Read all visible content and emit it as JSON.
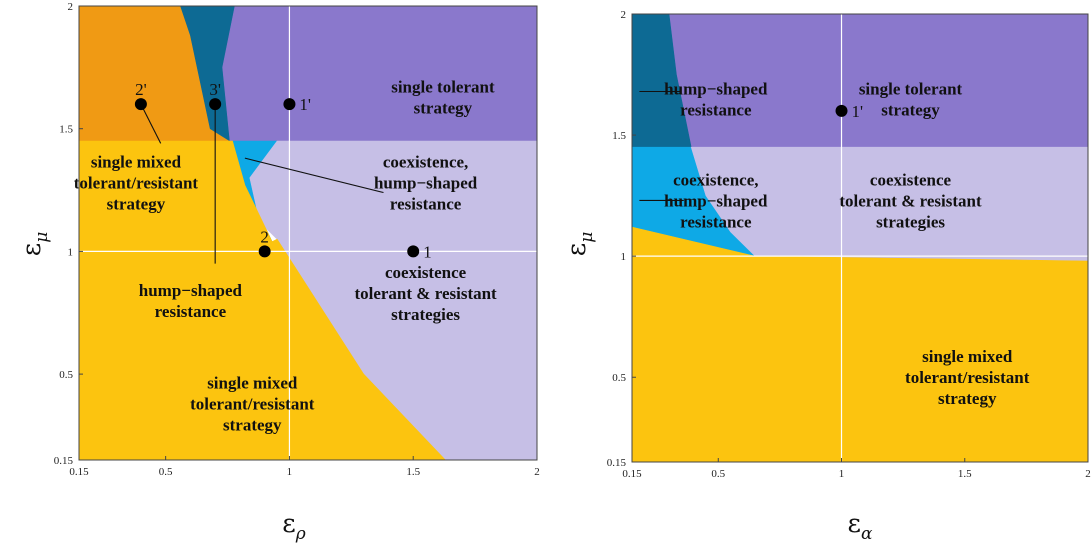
{
  "colors": {
    "single_tolerant": "#8a78cc",
    "coexistence_tol_res": "#c6bfe6",
    "hump_dark": "#0d6a94",
    "hump_light": "#0ea9e6",
    "mixed_yellow": "#fcc40f",
    "mixed_orange": "#f09a14",
    "guide": "#ffffff"
  },
  "chart_data": [
    {
      "type": "heatmap",
      "panel": "left",
      "xlabel": "ε",
      "xlabel_sub": "ρ",
      "ylabel": "ε",
      "ylabel_sub": "μ",
      "xlim": [
        0.15,
        2
      ],
      "ylim": [
        0.15,
        2
      ],
      "x_ticks": [
        "0.15",
        "0.5",
        "1",
        "1.5",
        "2"
      ],
      "y_ticks": [
        "0.15",
        "0.5",
        "1",
        "1.5",
        "2"
      ],
      "guides": {
        "x": 1,
        "y": 1
      },
      "regions": [
        {
          "key": "orange",
          "color_key": "mixed_orange",
          "polygon": [
            [
              0.15,
              2
            ],
            [
              0.56,
              2
            ],
            [
              0.6,
              1.88
            ],
            [
              0.65,
              1.74
            ],
            [
              0.71,
              1.6
            ],
            [
              0.77,
              1.45
            ],
            [
              0.15,
              1.45
            ]
          ]
        },
        {
          "key": "dark",
          "color_key": "hump_dark",
          "polygon": [
            [
              0.56,
              2
            ],
            [
              0.78,
              2
            ],
            [
              0.73,
              1.75
            ],
            [
              0.76,
              1.45
            ],
            [
              0.68,
              1.5
            ],
            [
              0.6,
              1.88
            ]
          ]
        },
        {
          "key": "purple",
          "color_key": "single_tolerant",
          "polygon": [
            [
              0.78,
              2
            ],
            [
              2,
              2
            ],
            [
              2,
              1.45
            ],
            [
              0.76,
              1.45
            ],
            [
              0.73,
              1.75
            ]
          ]
        },
        {
          "key": "cyan",
          "color_key": "hump_light",
          "polygon": [
            [
              0.77,
              1.45
            ],
            [
              0.95,
              1.45
            ],
            [
              0.84,
              1.3
            ],
            [
              0.88,
              1.12
            ],
            [
              0.93,
              1.04
            ],
            [
              0.82,
              1.27
            ]
          ]
        },
        {
          "key": "lavender",
          "color_key": "coexistence_tol_res",
          "polygon": [
            [
              0.95,
              1.45
            ],
            [
              2,
              1.45
            ],
            [
              2,
              0.15
            ],
            [
              1.63,
              0.15
            ],
            [
              1.3,
              0.5
            ],
            [
              0.95,
              1.05
            ],
            [
              0.88,
              1.12
            ],
            [
              0.84,
              1.3
            ]
          ]
        },
        {
          "key": "yellow",
          "color_key": "mixed_yellow",
          "polygon": [
            [
              0.15,
              1.45
            ],
            [
              0.77,
              1.45
            ],
            [
              0.82,
              1.27
            ],
            [
              0.93,
              1.04
            ],
            [
              0.95,
              1.05
            ],
            [
              1.3,
              0.5
            ],
            [
              1.63,
              0.15
            ],
            [
              0.15,
              0.15
            ]
          ]
        }
      ],
      "region_labels": [
        {
          "lines": [
            "single tolerant",
            "strategy"
          ],
          "x": 1.62,
          "y": 1.63
        },
        {
          "lines": [
            "single mixed",
            "tolerant/resistant",
            "strategy"
          ],
          "x": 0.38,
          "y": 1.28
        },
        {
          "lines": [
            "coexistence,",
            "hump−shaped",
            "resistance"
          ],
          "x": 1.55,
          "y": 1.28
        },
        {
          "lines": [
            "coexistence",
            "tolerant & resistant",
            "strategies"
          ],
          "x": 1.55,
          "y": 0.83
        },
        {
          "lines": [
            "hump−shaped",
            "resistance"
          ],
          "x": 0.6,
          "y": 0.8
        },
        {
          "lines": [
            "single mixed",
            "tolerant/resistant",
            "strategy"
          ],
          "x": 0.85,
          "y": 0.38
        }
      ],
      "points": [
        {
          "label": "1'",
          "x": 1.0,
          "y": 1.6,
          "label_side": "right"
        },
        {
          "label": "2'",
          "x": 0.4,
          "y": 1.6,
          "label_side": "above"
        },
        {
          "label": "3'",
          "x": 0.7,
          "y": 1.6,
          "label_side": "above"
        },
        {
          "label": "2",
          "x": 0.9,
          "y": 1.0,
          "label_side": "above"
        },
        {
          "label": "1",
          "x": 1.5,
          "y": 1.0,
          "label_side": "right"
        }
      ],
      "leader_lines": [
        {
          "from": [
            0.4,
            1.6
          ],
          "to": [
            0.48,
            1.44
          ]
        },
        {
          "from": [
            0.7,
            1.6
          ],
          "to": [
            0.7,
            0.95
          ]
        },
        {
          "from": [
            0.82,
            1.38
          ],
          "to": [
            1.38,
            1.24
          ]
        }
      ]
    },
    {
      "type": "heatmap",
      "panel": "right",
      "xlabel": "ε",
      "xlabel_sub": "α",
      "ylabel": "ε",
      "ylabel_sub": "μ",
      "xlim": [
        0.15,
        2
      ],
      "ylim": [
        0.15,
        2
      ],
      "x_ticks": [
        "0.15",
        "0.5",
        "1",
        "1.5",
        "2"
      ],
      "y_ticks": [
        "0.15",
        "0.5",
        "1",
        "1.5",
        "2"
      ],
      "guides": {
        "x": 1,
        "y": 1
      },
      "regions": [
        {
          "key": "purple",
          "color_key": "single_tolerant",
          "polygon": [
            [
              0.15,
              2
            ],
            [
              2,
              2
            ],
            [
              2,
              1.45
            ],
            [
              0.15,
              1.45
            ]
          ]
        },
        {
          "key": "dark",
          "color_key": "hump_dark",
          "polygon": [
            [
              0.15,
              2
            ],
            [
              0.3,
              2
            ],
            [
              0.33,
              1.75
            ],
            [
              0.39,
              1.45
            ],
            [
              0.15,
              1.45
            ]
          ]
        },
        {
          "key": "cyan",
          "color_key": "hump_light",
          "polygon": [
            [
              0.15,
              1.45
            ],
            [
              0.39,
              1.45
            ],
            [
              0.45,
              1.25
            ],
            [
              0.55,
              1.1
            ],
            [
              0.65,
              1.0
            ],
            [
              0.15,
              1.12
            ]
          ]
        },
        {
          "key": "lavender",
          "color_key": "coexistence_tol_res",
          "polygon": [
            [
              0.39,
              1.45
            ],
            [
              2,
              1.45
            ],
            [
              2,
              0.98
            ],
            [
              0.65,
              1.0
            ],
            [
              0.55,
              1.1
            ],
            [
              0.45,
              1.25
            ]
          ]
        },
        {
          "key": "yellow",
          "color_key": "mixed_yellow",
          "polygon": [
            [
              0.15,
              1.12
            ],
            [
              0.65,
              1.0
            ],
            [
              2,
              0.98
            ],
            [
              2,
              0.15
            ],
            [
              0.15,
              0.15
            ]
          ]
        }
      ],
      "region_labels": [
        {
          "lines": [
            "hump−shaped",
            "resistance"
          ],
          "x": 0.49,
          "y": 1.65
        },
        {
          "lines": [
            "single tolerant",
            "strategy"
          ],
          "x": 1.28,
          "y": 1.65
        },
        {
          "lines": [
            "coexistence,",
            "hump−shaped",
            "resistance"
          ],
          "x": 0.49,
          "y": 1.23
        },
        {
          "lines": [
            "coexistence",
            "tolerant & resistant",
            "strategies"
          ],
          "x": 1.28,
          "y": 1.23
        },
        {
          "lines": [
            "single mixed",
            "tolerant/resistant",
            "strategy"
          ],
          "x": 1.51,
          "y": 0.5
        }
      ],
      "points": [
        {
          "label": "1'",
          "x": 1.0,
          "y": 1.6,
          "label_side": "right"
        }
      ],
      "leader_lines": [
        {
          "from": [
            0.18,
            1.68
          ],
          "to": [
            0.35,
            1.68
          ]
        },
        {
          "from": [
            0.18,
            1.23
          ],
          "to": [
            0.36,
            1.23
          ]
        }
      ]
    }
  ]
}
